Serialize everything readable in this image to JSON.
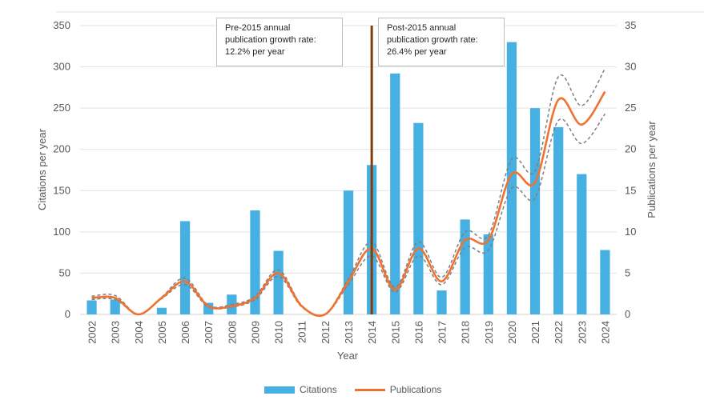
{
  "chart_data": {
    "type": "bar+line",
    "xlabel": "Year",
    "ylabel_left": "Citations per year",
    "ylabel_right": "Publications per year",
    "ylim_left": [
      0,
      350
    ],
    "ylim_right": [
      0,
      35
    ],
    "yticks_left": [
      "0",
      "50",
      "100",
      "150",
      "200",
      "250",
      "300",
      "350"
    ],
    "yticks_right": [
      "0",
      "5",
      "10",
      "15",
      "20",
      "25",
      "30",
      "35"
    ],
    "categories": [
      "2002",
      "2003",
      "2004",
      "2005",
      "2006",
      "2007",
      "2008",
      "2009",
      "2010",
      "2011",
      "2012",
      "2013",
      "2014",
      "2015",
      "2016",
      "2017",
      "2018",
      "2019",
      "2020",
      "2021",
      "2022",
      "2023",
      "2024"
    ],
    "series": [
      {
        "name": "Citations",
        "type": "bar",
        "axis": "left",
        "color": "#45b0e1",
        "values": [
          17,
          18,
          0,
          8,
          113,
          14,
          24,
          126,
          77,
          0,
          0,
          150,
          181,
          292,
          232,
          29,
          115,
          97,
          330,
          250,
          227,
          170,
          78
        ]
      },
      {
        "name": "Publications",
        "type": "line",
        "axis": "right",
        "color": "#f07230",
        "values": [
          2,
          2,
          0,
          2,
          4,
          1,
          1,
          2,
          5,
          1,
          0,
          4,
          8,
          3,
          8,
          4,
          9,
          9,
          17,
          16,
          26,
          23,
          27
        ]
      }
    ],
    "confidence_band": {
      "color": "#7f7f7f",
      "upper": [
        2.2,
        2.3,
        0,
        2.1,
        4.4,
        1.1,
        1.2,
        2.2,
        5.4,
        1.1,
        0,
        4.3,
        8.8,
        3.3,
        8.8,
        4.5,
        10,
        9.6,
        18.8,
        17.4,
        28.8,
        25.3,
        29.8
      ],
      "lower": [
        1.8,
        1.8,
        0,
        1.9,
        3.6,
        0.9,
        0.9,
        1.8,
        4.6,
        0.9,
        0,
        3.6,
        7.1,
        2.7,
        7.1,
        3.6,
        8.1,
        7.8,
        15.3,
        14.1,
        23.5,
        20.7,
        24.3
      ]
    },
    "marker_line": {
      "x": "2014",
      "color": "#843c0c"
    },
    "annotations": [
      {
        "text": "Pre-2015 annual\npublication growth rate:\n12.2% per year"
      },
      {
        "text": "Post-2015 annual\npublication growth rate:\n26.4% per year"
      }
    ],
    "legend": {
      "position": "bottom",
      "entries": [
        "Citations",
        "Publications"
      ]
    },
    "grid": true
  }
}
